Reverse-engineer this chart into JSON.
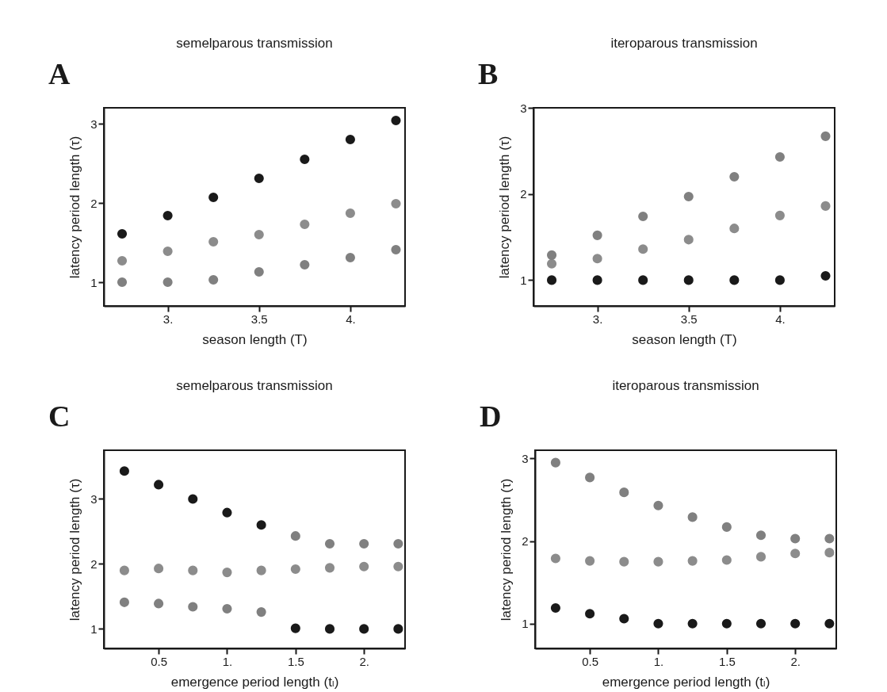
{
  "chart_data": [
    {
      "type": "scatter",
      "title": "semelparous transmission",
      "xlabel": "season length (T)",
      "ylabel": "latency period length (τ)",
      "annotations": [
        "A"
      ],
      "x": [
        2.75,
        3.0,
        3.25,
        3.5,
        3.75,
        4.0,
        4.25
      ],
      "xlim": [
        2.65,
        4.3
      ],
      "xticks": [
        {
          "value": 3,
          "label": "3."
        },
        3.5,
        {
          "value": 4,
          "label": "4."
        }
      ],
      "ylim": [
        0.7,
        3.2
      ],
      "yticks": [
        1,
        2,
        3
      ],
      "marker": "circle",
      "grid": false,
      "legend": false,
      "series": [
        {
          "color": "#1a1a1a",
          "values": [
            1.61,
            1.84,
            2.07,
            2.31,
            2.55,
            2.8,
            3.04
          ]
        },
        {
          "color": "#8c8c8c",
          "values": [
            1.27,
            1.39,
            1.51,
            1.6,
            1.73,
            1.87,
            1.99
          ]
        },
        {
          "color": "#808080",
          "values": [
            1.0,
            1.0,
            1.03,
            1.13,
            1.22,
            1.31,
            1.41
          ]
        }
      ]
    },
    {
      "type": "scatter",
      "title": "iteroparous transmission",
      "xlabel": "season length (T)",
      "ylabel": "latency period length (τ)",
      "annotations": [
        "B"
      ],
      "x": [
        2.75,
        3.0,
        3.25,
        3.5,
        3.75,
        4.0,
        4.25
      ],
      "xlim": [
        2.65,
        4.3
      ],
      "xticks": [
        {
          "value": 3,
          "label": "3."
        },
        3.5,
        {
          "value": 4,
          "label": "4."
        }
      ],
      "ylim": [
        0.7,
        3.0
      ],
      "yticks": [
        1,
        2,
        3
      ],
      "marker": "circle",
      "grid": false,
      "legend": false,
      "series": [
        {
          "color": "#1a1a1a",
          "values": [
            1.0,
            1.0,
            1.0,
            1.0,
            1.0,
            1.0,
            1.05
          ]
        },
        {
          "color": "#8c8c8c",
          "values": [
            1.19,
            1.25,
            1.36,
            1.47,
            1.6,
            1.75,
            1.86
          ]
        },
        {
          "color": "#808080",
          "values": [
            1.29,
            1.52,
            1.74,
            1.97,
            2.2,
            2.43,
            2.67
          ]
        }
      ]
    },
    {
      "type": "scatter",
      "title": "semelparous transmission",
      "xlabel": "emergence period length (tₗ)",
      "ylabel": "latency period length (τ)",
      "annotations": [
        "C"
      ],
      "x": [
        0.25,
        0.5,
        0.75,
        1.0,
        1.25,
        1.5,
        1.75,
        2.0,
        2.25
      ],
      "xlim": [
        0.1,
        2.3
      ],
      "xticks": [
        0.5,
        {
          "value": 1,
          "label": "1."
        },
        1.5,
        {
          "value": 2,
          "label": "2."
        }
      ],
      "ylim": [
        0.7,
        3.75
      ],
      "yticks": [
        1,
        2,
        3
      ],
      "marker": "circle",
      "grid": false,
      "legend": false,
      "series": [
        {
          "color": "#1a1a1a",
          "values": [
            3.43,
            3.22,
            3.0,
            2.79,
            2.6,
            1.01,
            1.0,
            1.0,
            1.0
          ]
        },
        {
          "color": "#8c8c8c",
          "values": [
            1.9,
            1.93,
            1.9,
            1.87,
            1.9,
            1.92,
            1.94,
            1.96,
            1.96
          ]
        },
        {
          "color": "#808080",
          "values": [
            1.41,
            1.39,
            1.34,
            1.31,
            1.26,
            2.43,
            2.31,
            2.31,
            2.31
          ]
        }
      ]
    },
    {
      "type": "scatter",
      "title": "iteroparous transmission",
      "xlabel": "emergence period length (tₗ)",
      "ylabel": "latency period length (τ)",
      "annotations": [
        "D"
      ],
      "x": [
        0.25,
        0.5,
        0.75,
        1.0,
        1.25,
        1.5,
        1.75,
        2.0,
        2.25
      ],
      "xlim": [
        0.1,
        2.3
      ],
      "xticks": [
        0.5,
        {
          "value": 1,
          "label": "1."
        },
        1.5,
        {
          "value": 2,
          "label": "2."
        }
      ],
      "ylim": [
        0.7,
        3.1
      ],
      "yticks": [
        1,
        2,
        3
      ],
      "marker": "circle",
      "grid": false,
      "legend": false,
      "series": [
        {
          "color": "#1a1a1a",
          "values": [
            1.19,
            1.12,
            1.06,
            1.0,
            1.0,
            1.0,
            1.0,
            1.0,
            1.0
          ]
        },
        {
          "color": "#8c8c8c",
          "values": [
            1.79,
            1.76,
            1.75,
            1.75,
            1.76,
            1.77,
            1.81,
            1.85,
            1.86
          ]
        },
        {
          "color": "#808080",
          "values": [
            2.95,
            2.77,
            2.59,
            2.43,
            2.29,
            2.17,
            2.07,
            2.03,
            2.03
          ]
        }
      ]
    }
  ]
}
